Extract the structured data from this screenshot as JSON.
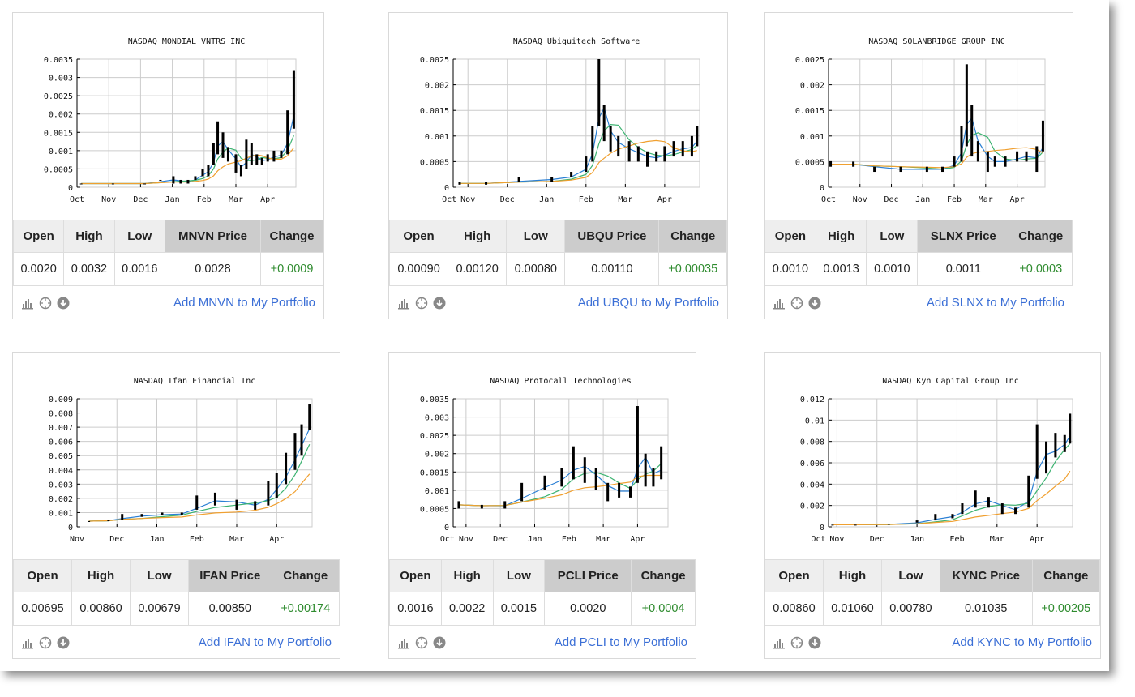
{
  "ma_colors": [
    "#2a7fd4",
    "#3cb371",
    "#f0a030"
  ],
  "bar_color": "#000000",
  "change_color": "#2e8b2e",
  "link_color": "#3b6fd6",
  "cards": [
    {
      "ticker": "MNVN",
      "headers": [
        "Open",
        "High",
        "Low",
        "MNVN Price",
        "Change"
      ],
      "values": [
        "0.0020",
        "0.0032",
        "0.0016",
        "0.0028",
        "+0.0009"
      ],
      "link": "Add MNVN to My Portfolio",
      "chart_data": {
        "type": "bar",
        "title": "NASDAQ MONDIAL VNTRS INC",
        "x_range": [
          "Oct 1",
          "Apr 28"
        ],
        "xticks": [
          "Oct",
          "Nov",
          "Dec",
          "Jan",
          "Feb",
          "Mar",
          "Apr"
        ],
        "ylim": [
          0,
          0.0035
        ],
        "yticks": [
          "0",
          "0.0005",
          "0.001",
          "0.0015",
          "0.002",
          "0.0025",
          "0.003",
          "0.0035"
        ],
        "bars": [
          [
            "Oct 5",
            0.0001,
            0.0001
          ],
          [
            "Nov 5",
            0.0001,
            0.0001
          ],
          [
            "Dec 5",
            0.0001,
            0.0001
          ],
          [
            "Dec 20",
            0.0002,
            0.0002
          ],
          [
            "Jan 2",
            0.0001,
            0.0003
          ],
          [
            "Jan 9",
            0.0001,
            0.0002
          ],
          [
            "Jan 16",
            0.0001,
            0.0002
          ],
          [
            "Jan 23",
            0.0002,
            0.0003
          ],
          [
            "Jan 30",
            0.0003,
            0.0005
          ],
          [
            "Feb 5",
            0.0003,
            0.0006
          ],
          [
            "Feb 10",
            0.0006,
            0.0012
          ],
          [
            "Feb 14",
            0.0009,
            0.0018
          ],
          [
            "Feb 19",
            0.0008,
            0.0015
          ],
          [
            "Feb 24",
            0.0007,
            0.0011
          ],
          [
            "Mar 1",
            0.0004,
            0.0009
          ],
          [
            "Mar 6",
            0.0003,
            0.0006
          ],
          [
            "Mar 11",
            0.0005,
            0.0013
          ],
          [
            "Mar 16",
            0.0006,
            0.0012
          ],
          [
            "Mar 21",
            0.0006,
            0.0009
          ],
          [
            "Mar 26",
            0.0006,
            0.0008
          ],
          [
            "Apr 1",
            0.0007,
            0.0009
          ],
          [
            "Apr 7",
            0.0007,
            0.001
          ],
          [
            "Apr 14",
            0.0008,
            0.001
          ],
          [
            "Apr 20",
            0.0009,
            0.0021
          ],
          [
            "Apr 26",
            0.0016,
            0.0032
          ]
        ]
      }
    },
    {
      "ticker": "UBQU",
      "headers": [
        "Open",
        "High",
        "Low",
        "UBQU Price",
        "Change"
      ],
      "values": [
        "0.00090",
        "0.00120",
        "0.00080",
        "0.00110",
        "+0.00035"
      ],
      "link": "Add UBQU to My Portfolio",
      "chart_data": {
        "type": "bar",
        "title": "NASDAQ Ubiquitech Software",
        "x_range": [
          "Oct 20",
          "Apr 28"
        ],
        "xticks": [
          "Oct",
          "Nov",
          "Dec",
          "Jan",
          "Feb",
          "Mar",
          "Apr"
        ],
        "ylim": [
          0,
          0.0025
        ],
        "yticks": [
          "0",
          "0.0005",
          "0.001",
          "0.0015",
          "0.002",
          "0.0025"
        ],
        "bars": [
          [
            "Oct 25",
            5e-05,
            0.0001
          ],
          [
            "Nov 15",
            5e-05,
            0.0001
          ],
          [
            "Dec 10",
            0.0001,
            0.0002
          ],
          [
            "Jan 5",
            0.0001,
            0.0002
          ],
          [
            "Jan 20",
            0.0002,
            0.0003
          ],
          [
            "Feb 1",
            0.0003,
            0.0006
          ],
          [
            "Feb 6",
            0.0005,
            0.0012
          ],
          [
            "Feb 11",
            0.0012,
            0.0025
          ],
          [
            "Feb 15",
            0.0009,
            0.0016
          ],
          [
            "Feb 20",
            0.0007,
            0.0012
          ],
          [
            "Feb 26",
            0.0006,
            0.001
          ],
          [
            "Mar 4",
            0.0005,
            0.0009
          ],
          [
            "Mar 11",
            0.0005,
            0.0008
          ],
          [
            "Mar 18",
            0.0004,
            0.0007
          ],
          [
            "Mar 25",
            0.0005,
            0.0007
          ],
          [
            "Apr 1",
            0.0005,
            0.0008
          ],
          [
            "Apr 8",
            0.0006,
            0.0009
          ],
          [
            "Apr 15",
            0.0006,
            0.0009
          ],
          [
            "Apr 22",
            0.0006,
            0.001
          ],
          [
            "Apr 26",
            0.0008,
            0.0012
          ]
        ]
      }
    },
    {
      "ticker": "SLNX",
      "headers": [
        "Open",
        "High",
        "Low",
        "SLNX Price",
        "Change"
      ],
      "values": [
        "0.0010",
        "0.0013",
        "0.0010",
        "0.0011",
        "+0.0003"
      ],
      "link": "Add SLNX to My Portfolio",
      "chart_data": {
        "type": "bar",
        "title": "NASDAQ SOLANBRIDGE GROUP INC",
        "x_range": [
          "Oct 1",
          "Apr 28"
        ],
        "xticks": [
          "Oct",
          "Nov",
          "Dec",
          "Jan",
          "Feb",
          "Mar",
          "Apr"
        ],
        "ylim": [
          0,
          0.0025
        ],
        "yticks": [
          "0",
          "0.0005",
          "0.001",
          "0.0015",
          "0.002",
          "0.0025"
        ],
        "bars": [
          [
            "Oct 3",
            0.0004,
            0.0005
          ],
          [
            "Oct 25",
            0.0004,
            0.0005
          ],
          [
            "Nov 15",
            0.0003,
            0.0004
          ],
          [
            "Dec 10",
            0.0003,
            0.0004
          ],
          [
            "Jan 5",
            0.0003,
            0.0004
          ],
          [
            "Jan 20",
            0.0003,
            0.0004
          ],
          [
            "Feb 1",
            0.0004,
            0.0006
          ],
          [
            "Feb 8",
            0.0005,
            0.0012
          ],
          [
            "Feb 13",
            0.0008,
            0.0024
          ],
          [
            "Feb 18",
            0.0006,
            0.0016
          ],
          [
            "Feb 24",
            0.0005,
            0.0009
          ],
          [
            "Mar 3",
            0.0003,
            0.0007
          ],
          [
            "Mar 10",
            0.0004,
            0.0006
          ],
          [
            "Mar 20",
            0.0004,
            0.0006
          ],
          [
            "Apr 1",
            0.0005,
            0.0007
          ],
          [
            "Apr 10",
            0.0005,
            0.0007
          ],
          [
            "Apr 20",
            0.0003,
            0.0008
          ],
          [
            "Apr 26",
            0.0007,
            0.0013
          ]
        ]
      }
    },
    {
      "ticker": "IFAN",
      "headers": [
        "Open",
        "High",
        "Low",
        "IFAN Price",
        "Change"
      ],
      "values": [
        "0.00695",
        "0.00860",
        "0.00679",
        "0.00850",
        "+0.00174"
      ],
      "link": "Add IFAN to My Portfolio",
      "chart_data": {
        "type": "bar",
        "title": "NASDAQ Ifan Financial Inc",
        "x_range": [
          "Nov 1",
          "Apr 28"
        ],
        "xticks": [
          "Nov",
          "Dec",
          "Jan",
          "Feb",
          "Mar",
          "Apr"
        ],
        "ylim": [
          0,
          0.009
        ],
        "yticks": [
          "0",
          "0.001",
          "0.002",
          "0.003",
          "0.004",
          "0.005",
          "0.006",
          "0.007",
          "0.008",
          "0.009"
        ],
        "bars": [
          [
            "Nov 10",
            0.0004,
            0.0004
          ],
          [
            "Nov 25",
            0.0004,
            0.0005
          ],
          [
            "Dec 5",
            0.0005,
            0.0009
          ],
          [
            "Dec 20",
            0.0007,
            0.0009
          ],
          [
            "Jan 5",
            0.0008,
            0.001
          ],
          [
            "Jan 20",
            0.0008,
            0.001
          ],
          [
            "Feb 1",
            0.0012,
            0.0022
          ],
          [
            "Feb 15",
            0.0015,
            0.0024
          ],
          [
            "Mar 1",
            0.0012,
            0.0019
          ],
          [
            "Mar 15",
            0.0012,
            0.0018
          ],
          [
            "Mar 25",
            0.0015,
            0.0032
          ],
          [
            "Apr 1",
            0.002,
            0.0038
          ],
          [
            "Apr 8",
            0.003,
            0.0052
          ],
          [
            "Apr 15",
            0.004,
            0.0066
          ],
          [
            "Apr 20",
            0.005,
            0.0072
          ],
          [
            "Apr 26",
            0.0068,
            0.0086
          ]
        ]
      }
    },
    {
      "ticker": "PCLI",
      "headers": [
        "Open",
        "High",
        "Low",
        "PCLI Price",
        "Change"
      ],
      "values": [
        "0.0016",
        "0.0022",
        "0.0015",
        "0.0020",
        "+0.0004"
      ],
      "link": "Add PCLI to My Portfolio",
      "chart_data": {
        "type": "bar",
        "title": "NASDAQ Protocall Technologies",
        "x_range": [
          "Oct 20",
          "Apr 28"
        ],
        "xticks": [
          "Oct",
          "Nov",
          "Dec",
          "Jan",
          "Feb",
          "Mar",
          "Apr"
        ],
        "ylim": [
          0,
          0.0035
        ],
        "yticks": [
          "0",
          "0.0005",
          "0.001",
          "0.0015",
          "0.002",
          "0.0025",
          "0.003",
          "0.0035"
        ],
        "bars": [
          [
            "Oct 25",
            0.0005,
            0.0007
          ],
          [
            "Nov 15",
            0.0005,
            0.0006
          ],
          [
            "Dec 5",
            0.0005,
            0.0007
          ],
          [
            "Dec 20",
            0.0007,
            0.0012
          ],
          [
            "Jan 10",
            0.001,
            0.0014
          ],
          [
            "Jan 25",
            0.0011,
            0.0016
          ],
          [
            "Feb 5",
            0.0013,
            0.0022
          ],
          [
            "Feb 15",
            0.0012,
            0.0019
          ],
          [
            "Feb 25",
            0.001,
            0.0016
          ],
          [
            "Mar 5",
            0.0007,
            0.0012
          ],
          [
            "Mar 15",
            0.0008,
            0.0012
          ],
          [
            "Mar 25",
            0.0008,
            0.0011
          ],
          [
            "Apr 1",
            0.0012,
            0.0033
          ],
          [
            "Apr 8",
            0.0011,
            0.002
          ],
          [
            "Apr 15",
            0.0011,
            0.0016
          ],
          [
            "Apr 22",
            0.0013,
            0.0022
          ]
        ]
      }
    },
    {
      "ticker": "KYNC",
      "headers": [
        "Open",
        "High",
        "Low",
        "KYNC Price",
        "Change"
      ],
      "values": [
        "0.00860",
        "0.01060",
        "0.00780",
        "0.01035",
        "+0.00205"
      ],
      "link": "Add KYNC to My Portfolio",
      "chart_data": {
        "type": "bar",
        "title": "NASDAQ Kyn Capital Group Inc",
        "x_range": [
          "Oct 25",
          "Apr 28"
        ],
        "xticks": [
          "Oct",
          "Nov",
          "Dec",
          "Jan",
          "Feb",
          "Mar",
          "Apr"
        ],
        "ylim": [
          0,
          0.012
        ],
        "yticks": [
          "0",
          "0.002",
          "0.004",
          "0.006",
          "0.008",
          "0.01",
          "0.012"
        ],
        "bars": [
          [
            "Oct 28",
            0.0002,
            0.0002
          ],
          [
            "Nov 15",
            0.0002,
            0.0002
          ],
          [
            "Dec 10",
            0.0002,
            0.0003
          ],
          [
            "Jan 1",
            0.0004,
            0.0006
          ],
          [
            "Jan 15",
            0.0006,
            0.0012
          ],
          [
            "Jan 28",
            0.0008,
            0.0012
          ],
          [
            "Feb 5",
            0.0012,
            0.0022
          ],
          [
            "Feb 15",
            0.0018,
            0.0034
          ],
          [
            "Feb 25",
            0.0018,
            0.0028
          ],
          [
            "Mar 5",
            0.0012,
            0.0022
          ],
          [
            "Mar 15",
            0.0012,
            0.0018
          ],
          [
            "Mar 25",
            0.0018,
            0.0048
          ],
          [
            "Apr 1",
            0.0045,
            0.0096
          ],
          [
            "Apr 8",
            0.005,
            0.008
          ],
          [
            "Apr 15",
            0.0065,
            0.0088
          ],
          [
            "Apr 22",
            0.007,
            0.0086
          ],
          [
            "Apr 26",
            0.0078,
            0.0106
          ]
        ]
      }
    }
  ]
}
